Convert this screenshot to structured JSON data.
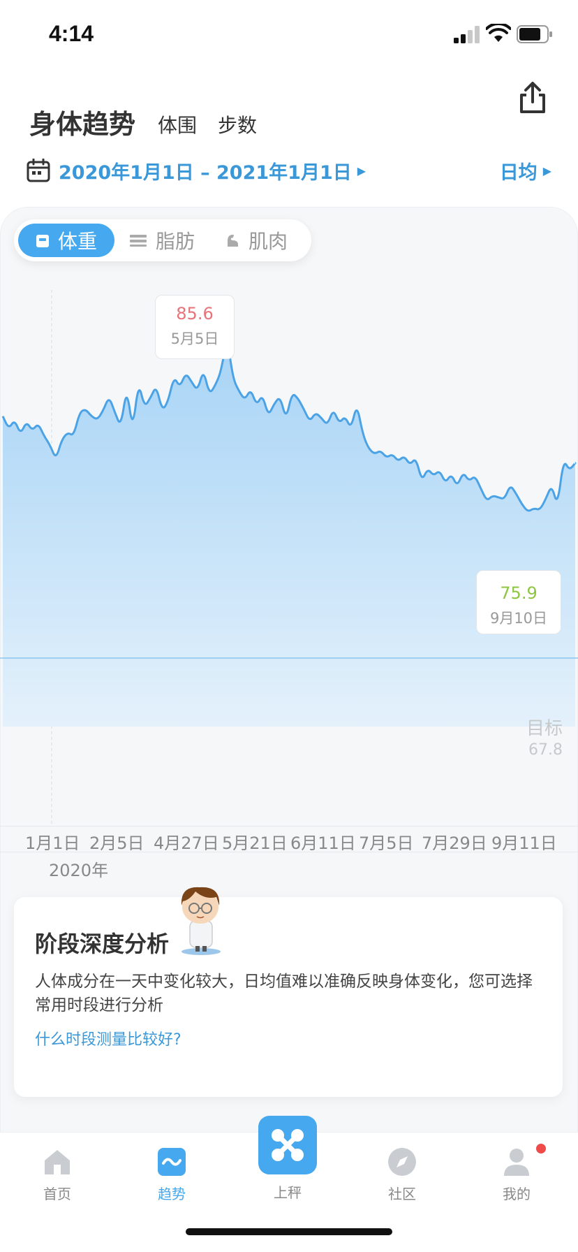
{
  "status_bar": {
    "time": "4:14"
  },
  "header": {
    "tabs": [
      {
        "label": "身体趋势",
        "active": true
      },
      {
        "label": "体围",
        "active": false
      },
      {
        "label": "步数",
        "active": false
      }
    ],
    "date_range": "2020年1月1日 – 2021年1月1日",
    "aggregation": "日均"
  },
  "metrics": [
    {
      "label": "体重",
      "icon": "scale-icon",
      "active": true
    },
    {
      "label": "脂肪",
      "icon": "fat-icon",
      "active": false
    },
    {
      "label": "肌肉",
      "icon": "muscle-icon",
      "active": false
    }
  ],
  "chart": {
    "max_tooltip": {
      "value": "85.6",
      "date": "5月5日"
    },
    "min_tooltip": {
      "value": "75.9",
      "date": "9月10日"
    },
    "goal": {
      "label": "目标",
      "value": "67.8"
    },
    "x_ticks": [
      "1月1日",
      "2月5日",
      "4月27日",
      "5月21日",
      "6月11日",
      "7月5日",
      "7月29日",
      "9月11日"
    ],
    "year": "2020年"
  },
  "chart_data": {
    "type": "area",
    "title": "",
    "xlabel": "",
    "ylabel": "",
    "ylim": [
      64,
      88
    ],
    "goal": 67.8,
    "series": [
      {
        "values": [
          81.2,
          80.5,
          81.0,
          80.2,
          80.9,
          80.4,
          80.8,
          80.1,
          79.6,
          78.8,
          79.9,
          80.3,
          80.1,
          81.4,
          81.6,
          81.2,
          81.0,
          81.5,
          82.3,
          81.4,
          80.6,
          82.8,
          80.4,
          83.1,
          81.7,
          82.2,
          82.9,
          81.5,
          82.0,
          83.4,
          82.8,
          83.6,
          83.1,
          82.6,
          83.8,
          82.4,
          82.9,
          83.7,
          85.6,
          83.3,
          82.6,
          82.1,
          82.7,
          81.8,
          82.4,
          81.2,
          81.9,
          82.3,
          81.0,
          82.5,
          82.2,
          81.6,
          80.9,
          81.4,
          81.1,
          80.7,
          81.6,
          80.8,
          81.2,
          80.5,
          81.9,
          80.2,
          79.4,
          79.1,
          79.3,
          78.9,
          79.1,
          78.7,
          79.0,
          78.5,
          78.9,
          77.6,
          78.3,
          77.9,
          78.2,
          77.5,
          78.0,
          77.3,
          78.1,
          77.6,
          77.9,
          77.2,
          76.5,
          76.8,
          76.7,
          76.6,
          77.4,
          76.9,
          76.3,
          75.9,
          76.1,
          76.0,
          76.6,
          77.4,
          76.2,
          78.8,
          78.2,
          78.6
        ]
      }
    ]
  },
  "analysis": {
    "title": "阶段深度分析",
    "body": "人体成分在一天中变化较大，日均值难以准确反映身体变化，您可选择常用时段进行分析",
    "link": "什么时段测量比较好?"
  },
  "nav": {
    "items": [
      {
        "label": "首页",
        "icon": "home-icon"
      },
      {
        "label": "趋势",
        "icon": "trend-icon"
      },
      {
        "label": "上秤",
        "icon": "scale-center-icon"
      },
      {
        "label": "社区",
        "icon": "compass-icon"
      },
      {
        "label": "我的",
        "icon": "profile-icon"
      }
    ]
  },
  "colors": {
    "accent": "#46a8ee",
    "link": "#3a98d8",
    "max": "#e9727a",
    "min": "#8dc63f"
  }
}
